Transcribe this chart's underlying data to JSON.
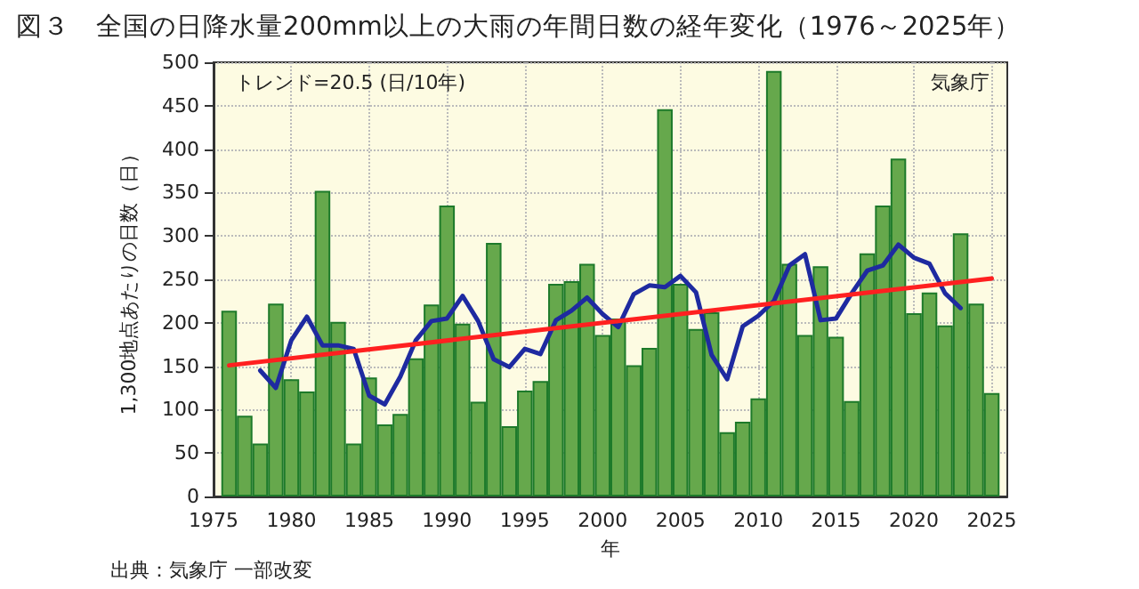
{
  "chart_data": {
    "type": "bar",
    "title": "図３　全国の日降水量200mm以上の大雨の年間日数の経年変化（1976～2025年）",
    "xlabel": "年",
    "ylabel": "1,300地点あたりの日数（日）",
    "annotations": [
      "トレンド=20.5 (日/10年)",
      "気象庁",
      "出典：気象庁 一部改変"
    ],
    "x": [
      1976,
      1977,
      1978,
      1979,
      1980,
      1981,
      1982,
      1983,
      1984,
      1985,
      1986,
      1987,
      1988,
      1989,
      1990,
      1991,
      1992,
      1993,
      1994,
      1995,
      1996,
      1997,
      1998,
      1999,
      2000,
      2001,
      2002,
      2003,
      2004,
      2005,
      2006,
      2007,
      2008,
      2009,
      2010,
      2011,
      2012,
      2013,
      2014,
      2015,
      2016,
      2017,
      2018,
      2019,
      2020,
      2021,
      2022,
      2023,
      2024,
      2025
    ],
    "xlim": [
      1975,
      2026
    ],
    "xticks": [
      1975,
      1980,
      1985,
      1990,
      1995,
      2000,
      2005,
      2010,
      2015,
      2020,
      2025
    ],
    "ylim": [
      0,
      500
    ],
    "yticks": [
      0,
      50,
      100,
      150,
      200,
      250,
      300,
      350,
      400,
      450,
      500
    ],
    "grid": true,
    "marker": "none",
    "series": [
      {
        "color": "#66a84c",
        "values": [
          214,
          93,
          61,
          222,
          135,
          121,
          352,
          201,
          61,
          137,
          83,
          95,
          159,
          221,
          335,
          199,
          109,
          292,
          81,
          122,
          133,
          245,
          248,
          268,
          186,
          205,
          151,
          171,
          446,
          245,
          193,
          212,
          74,
          86,
          113,
          490,
          268,
          186,
          265,
          184,
          110,
          280,
          335,
          389,
          211,
          235,
          197,
          303,
          222,
          119
        ]
      },
      {
        "type": "line",
        "color": "#1e2aa0",
        "x": [
          1978,
          1979,
          1980,
          1981,
          1982,
          1983,
          1984,
          1985,
          1986,
          1987,
          1988,
          1989,
          1990,
          1991,
          1992,
          1993,
          1994,
          1995,
          1996,
          1997,
          1998,
          1999,
          2000,
          2001,
          2002,
          2003,
          2004,
          2005,
          2006,
          2007,
          2008,
          2009,
          2010,
          2011,
          2012,
          2013,
          2014,
          2015,
          2016,
          2017,
          2018,
          2019,
          2020,
          2021,
          2022,
          2023
        ],
        "values": [
          145,
          125,
          180,
          207,
          174,
          174,
          170,
          116,
          106,
          138,
          180,
          202,
          205,
          231,
          202,
          158,
          149,
          170,
          164,
          203,
          214,
          229,
          210,
          195,
          233,
          243,
          241,
          254,
          235,
          163,
          135,
          196,
          208,
          225,
          266,
          279,
          203,
          205,
          234,
          260,
          266,
          290,
          275,
          268,
          234,
          217
        ]
      },
      {
        "type": "line",
        "color": "#ff2020",
        "x": [
          1976,
          2025
        ],
        "values": [
          151,
          251
        ]
      }
    ]
  }
}
